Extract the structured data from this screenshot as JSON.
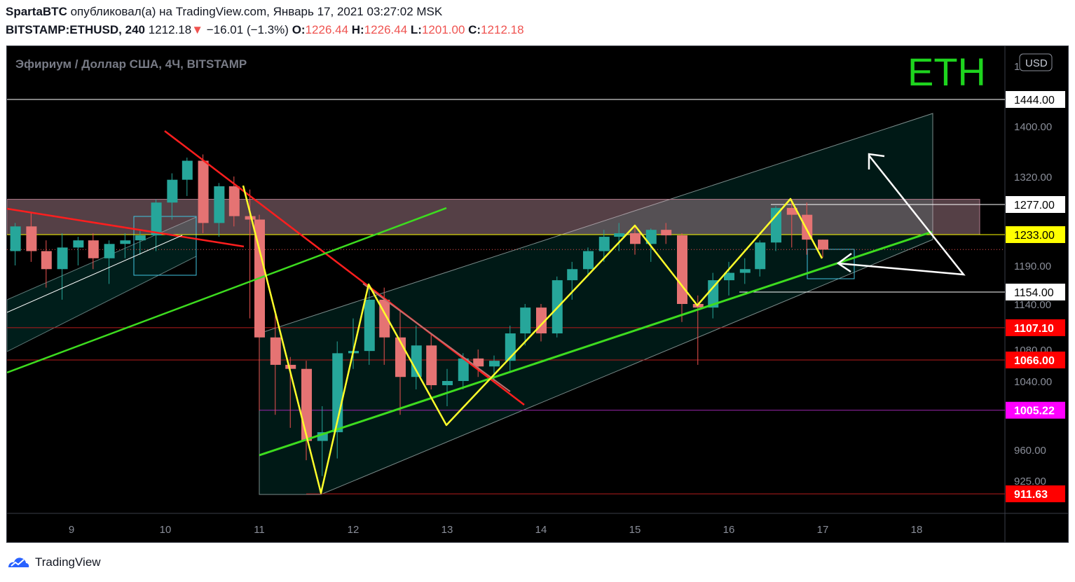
{
  "header": {
    "author": "SpartaBTC",
    "published_text": "опубликовал(а) на TradingView.com, Январь 17, 2021 03:27:02 MSK",
    "symbol": "BITSTAMP:ETHUSD, 240",
    "last": "1212.18",
    "arrow": "▼",
    "change": "−16.01 (−1.3%)",
    "o_label": "O:",
    "o_val": "1226.44",
    "h_label": "H:",
    "h_val": "1226.44",
    "l_label": "L:",
    "l_val": "1201.00",
    "c_label": "C:",
    "c_val": "1212.18"
  },
  "footer": {
    "brand": "TradingView"
  },
  "chart_data": {
    "type": "candlestick",
    "instrument_label": "Эфириум / Доллар США, 4Ч, BITSTAMP",
    "watermark": "ETH",
    "currency": "USD",
    "x_tick_labels": [
      "9",
      "10",
      "11",
      "12",
      "13",
      "14",
      "15",
      "16",
      "17",
      "18"
    ],
    "y_tick_labels": [
      {
        "v": 1400,
        "t": "1400.00"
      },
      {
        "v": 1320,
        "t": "1320.00"
      },
      {
        "v": 1190,
        "t": "1190.00"
      },
      {
        "v": 1140,
        "t": "1140.00"
      },
      {
        "v": 1080,
        "t": "1080.00"
      },
      {
        "v": 1040,
        "t": "1040.00"
      },
      {
        "v": 960,
        "t": "960.00"
      },
      {
        "v": 925,
        "t": "925.00"
      }
    ],
    "price_levels": [
      {
        "v": 1444.0,
        "t": "1444.00",
        "line": "#ffffff",
        "bg": "#ffffff",
        "fg": "#000000"
      },
      {
        "v": 1277.0,
        "t": "1277.00",
        "line": "#ffffff",
        "bg": "#ffffff",
        "fg": "#000000"
      },
      {
        "v": 1233.0,
        "t": "1233.00",
        "line": "#ffff00",
        "bg": "#ffff00",
        "fg": "#000000"
      },
      {
        "v": 1154.0,
        "t": "1154.00",
        "line": "#ffffff",
        "bg": "#ffffff",
        "fg": "#000000"
      },
      {
        "v": 1107.1,
        "t": "1107.10",
        "line": "#b71c1c",
        "bg": "#ff0000",
        "fg": "#ffffff"
      },
      {
        "v": 1066.0,
        "t": "1066.00",
        "line": "#b71c1c",
        "bg": "#ff0000",
        "fg": "#ffffff"
      },
      {
        "v": 1005.22,
        "t": "1005.22",
        "line": "#9c27b0",
        "bg": "#ff00ff",
        "fg": "#ffffff"
      },
      {
        "v": 911.63,
        "t": "911.63",
        "line": "#b71c1c",
        "bg": "#ff0000",
        "fg": "#ffffff"
      }
    ],
    "candles": [
      [
        8.4,
        1210,
        1250,
        1190,
        1245
      ],
      [
        8.57,
        1245,
        1265,
        1195,
        1210
      ],
      [
        8.73,
        1210,
        1225,
        1160,
        1185
      ],
      [
        8.9,
        1185,
        1235,
        1145,
        1215
      ],
      [
        9.07,
        1215,
        1230,
        1190,
        1225
      ],
      [
        9.23,
        1225,
        1235,
        1185,
        1200
      ],
      [
        9.4,
        1200,
        1225,
        1165,
        1220
      ],
      [
        9.57,
        1220,
        1235,
        1200,
        1225
      ],
      [
        9.73,
        1225,
        1240,
        1205,
        1232
      ],
      [
        9.9,
        1232,
        1285,
        1210,
        1280
      ],
      [
        10.07,
        1280,
        1325,
        1255,
        1315
      ],
      [
        10.23,
        1315,
        1350,
        1290,
        1345
      ],
      [
        10.4,
        1345,
        1355,
        1235,
        1250
      ],
      [
        10.57,
        1250,
        1310,
        1230,
        1305
      ],
      [
        10.73,
        1305,
        1320,
        1245,
        1260
      ],
      [
        10.9,
        1260,
        1300,
        1120,
        1255
      ],
      [
        11.0,
        1255,
        1262,
        1005,
        1095
      ],
      [
        11.17,
        1095,
        1130,
        1000,
        1060
      ],
      [
        11.33,
        1060,
        1070,
        985,
        1055
      ],
      [
        11.5,
        1055,
        1065,
        948,
        970
      ],
      [
        11.67,
        970,
        1010,
        930,
        980
      ],
      [
        11.83,
        980,
        1090,
        950,
        1075
      ],
      [
        12.0,
        1075,
        1120,
        1055,
        1078
      ],
      [
        12.17,
        1078,
        1165,
        1060,
        1145
      ],
      [
        12.33,
        1145,
        1160,
        1060,
        1095
      ],
      [
        12.5,
        1095,
        1130,
        1000,
        1045
      ],
      [
        12.67,
        1045,
        1110,
        1030,
        1085
      ],
      [
        12.83,
        1085,
        1100,
        1030,
        1035
      ],
      [
        13.0,
        1035,
        1055,
        1010,
        1040
      ],
      [
        13.17,
        1040,
        1075,
        1030,
        1068
      ],
      [
        13.33,
        1068,
        1080,
        1045,
        1058
      ],
      [
        13.5,
        1058,
        1072,
        1040,
        1065
      ],
      [
        13.67,
        1065,
        1110,
        1050,
        1100
      ],
      [
        13.83,
        1100,
        1140,
        1085,
        1135
      ],
      [
        14.0,
        1135,
        1140,
        1090,
        1100
      ],
      [
        14.17,
        1100,
        1175,
        1095,
        1170
      ],
      [
        14.33,
        1170,
        1195,
        1145,
        1185
      ],
      [
        14.5,
        1185,
        1215,
        1175,
        1210
      ],
      [
        14.67,
        1210,
        1240,
        1195,
        1230
      ],
      [
        14.83,
        1230,
        1250,
        1210,
        1235
      ],
      [
        15.0,
        1235,
        1245,
        1205,
        1220
      ],
      [
        15.17,
        1220,
        1242,
        1195,
        1240
      ],
      [
        15.33,
        1240,
        1250,
        1220,
        1232
      ],
      [
        15.5,
        1232,
        1235,
        1115,
        1140
      ],
      [
        15.67,
        1140,
        1150,
        1060,
        1135
      ],
      [
        15.83,
        1135,
        1180,
        1120,
        1170
      ],
      [
        16.0,
        1170,
        1195,
        1150,
        1180
      ],
      [
        16.17,
        1180,
        1200,
        1165,
        1185
      ],
      [
        16.33,
        1185,
        1225,
        1175,
        1222
      ],
      [
        16.5,
        1222,
        1275,
        1210,
        1272
      ],
      [
        16.67,
        1272,
        1285,
        1215,
        1262
      ],
      [
        16.83,
        1262,
        1280,
        1205,
        1226
      ],
      [
        17.0,
        1226,
        1226,
        1201,
        1212
      ]
    ]
  }
}
